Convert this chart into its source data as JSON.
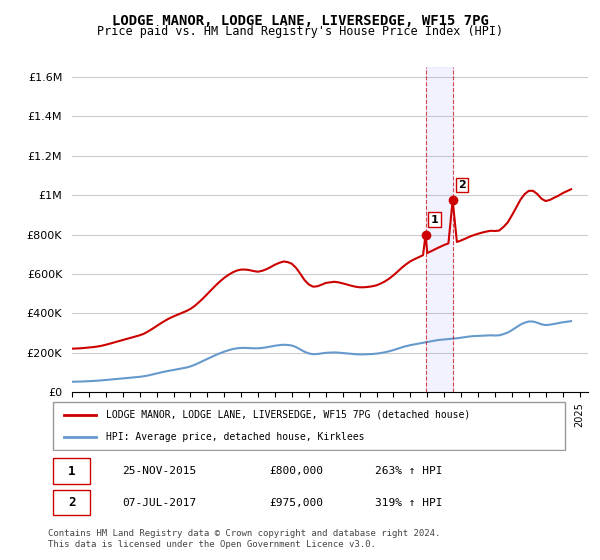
{
  "title": "LODGE MANOR, LODGE LANE, LIVERSEDGE, WF15 7PG",
  "subtitle": "Price paid vs. HM Land Registry's House Price Index (HPI)",
  "ylabel": "",
  "ylim": [
    0,
    1650000
  ],
  "yticks": [
    0,
    200000,
    400000,
    600000,
    800000,
    1000000,
    1200000,
    1400000,
    1600000
  ],
  "ytick_labels": [
    "£0",
    "£200K",
    "£400K",
    "£600K",
    "£800K",
    "£1M",
    "£1.2M",
    "£1.4M",
    "£1.6M"
  ],
  "xlim_start": 1995.0,
  "xlim_end": 2025.5,
  "sale1_x": 2015.9,
  "sale1_y": 800000,
  "sale1_label": "1",
  "sale2_x": 2017.5,
  "sale2_y": 975000,
  "sale2_label": "2",
  "sale_color": "#cc0000",
  "hpi_color": "#6699cc",
  "background_color": "#ffffff",
  "grid_color": "#cccccc",
  "legend_line1": "LODGE MANOR, LODGE LANE, LIVERSEDGE, WF15 7PG (detached house)",
  "legend_line2": "HPI: Average price, detached house, Kirklees",
  "table_row1": [
    "1",
    "25-NOV-2015",
    "£800,000",
    "263% ↑ HPI"
  ],
  "table_row2": [
    "2",
    "07-JUL-2017",
    "£975,000",
    "319% ↑ HPI"
  ],
  "footnote": "Contains HM Land Registry data © Crown copyright and database right 2024.\nThis data is licensed under the Open Government Licence v3.0.",
  "hpi_data_x": [
    1995.0,
    1995.25,
    1995.5,
    1995.75,
    1996.0,
    1996.25,
    1996.5,
    1996.75,
    1997.0,
    1997.25,
    1997.5,
    1997.75,
    1998.0,
    1998.25,
    1998.5,
    1998.75,
    1999.0,
    1999.25,
    1999.5,
    1999.75,
    2000.0,
    2000.25,
    2000.5,
    2000.75,
    2001.0,
    2001.25,
    2001.5,
    2001.75,
    2002.0,
    2002.25,
    2002.5,
    2002.75,
    2003.0,
    2003.25,
    2003.5,
    2003.75,
    2004.0,
    2004.25,
    2004.5,
    2004.75,
    2005.0,
    2005.25,
    2005.5,
    2005.75,
    2006.0,
    2006.25,
    2006.5,
    2006.75,
    2007.0,
    2007.25,
    2007.5,
    2007.75,
    2008.0,
    2008.25,
    2008.5,
    2008.75,
    2009.0,
    2009.25,
    2009.5,
    2009.75,
    2010.0,
    2010.25,
    2010.5,
    2010.75,
    2011.0,
    2011.25,
    2011.5,
    2011.75,
    2012.0,
    2012.25,
    2012.5,
    2012.75,
    2013.0,
    2013.25,
    2013.5,
    2013.75,
    2014.0,
    2014.25,
    2014.5,
    2014.75,
    2015.0,
    2015.25,
    2015.5,
    2015.75,
    2016.0,
    2016.25,
    2016.5,
    2016.75,
    2017.0,
    2017.25,
    2017.5,
    2017.75,
    2018.0,
    2018.25,
    2018.5,
    2018.75,
    2019.0,
    2019.25,
    2019.5,
    2019.75,
    2020.0,
    2020.25,
    2020.5,
    2020.75,
    2021.0,
    2021.25,
    2021.5,
    2021.75,
    2022.0,
    2022.25,
    2022.5,
    2022.75,
    2023.0,
    2023.25,
    2023.5,
    2023.75,
    2024.0,
    2024.25,
    2024.5
  ],
  "hpi_data_y": [
    52000,
    52500,
    53000,
    54000,
    55000,
    56000,
    57500,
    59000,
    61000,
    63000,
    65000,
    67000,
    69000,
    71000,
    73000,
    75000,
    77000,
    80000,
    84000,
    89000,
    94000,
    99000,
    104000,
    108000,
    112000,
    116000,
    120000,
    124000,
    130000,
    138000,
    148000,
    158000,
    168000,
    178000,
    188000,
    197000,
    205000,
    212000,
    218000,
    222000,
    224000,
    224000,
    223000,
    222000,
    222000,
    224000,
    227000,
    231000,
    235000,
    238000,
    240000,
    239000,
    236000,
    228000,
    216000,
    204000,
    196000,
    192000,
    193000,
    196000,
    199000,
    200000,
    201000,
    200000,
    198000,
    196000,
    194000,
    192000,
    191000,
    191000,
    192000,
    193000,
    195000,
    198000,
    202000,
    207000,
    213000,
    220000,
    227000,
    233000,
    238000,
    242000,
    246000,
    250000,
    254000,
    258000,
    262000,
    265000,
    267000,
    269000,
    271000,
    273000,
    276000,
    279000,
    282000,
    284000,
    285000,
    286000,
    287000,
    288000,
    287000,
    288000,
    294000,
    302000,
    314000,
    328000,
    342000,
    352000,
    358000,
    358000,
    352000,
    344000,
    340000,
    342000,
    346000,
    350000,
    354000,
    357000,
    360000
  ],
  "red_data_x": [
    1995.0,
    1995.25,
    1995.5,
    1995.75,
    1996.0,
    1996.25,
    1996.5,
    1996.75,
    1997.0,
    1997.25,
    1997.5,
    1997.75,
    1998.0,
    1998.25,
    1998.5,
    1998.75,
    1999.0,
    1999.25,
    1999.5,
    1999.75,
    2000.0,
    2000.25,
    2000.5,
    2000.75,
    2001.0,
    2001.25,
    2001.5,
    2001.75,
    2002.0,
    2002.25,
    2002.5,
    2002.75,
    2003.0,
    2003.25,
    2003.5,
    2003.75,
    2004.0,
    2004.25,
    2004.5,
    2004.75,
    2005.0,
    2005.25,
    2005.5,
    2005.75,
    2006.0,
    2006.25,
    2006.5,
    2006.75,
    2007.0,
    2007.25,
    2007.5,
    2007.75,
    2008.0,
    2008.25,
    2008.5,
    2008.75,
    2009.0,
    2009.25,
    2009.5,
    2009.75,
    2010.0,
    2010.25,
    2010.5,
    2010.75,
    2011.0,
    2011.25,
    2011.5,
    2011.75,
    2012.0,
    2012.25,
    2012.5,
    2012.75,
    2013.0,
    2013.25,
    2013.5,
    2013.75,
    2014.0,
    2014.25,
    2014.5,
    2014.75,
    2015.0,
    2015.25,
    2015.5,
    2015.75,
    2015.9,
    2016.0,
    2016.25,
    2016.5,
    2016.75,
    2017.0,
    2017.25,
    2017.5,
    2017.75,
    2018.0,
    2018.25,
    2018.5,
    2018.75,
    2019.0,
    2019.25,
    2019.5,
    2019.75,
    2020.0,
    2020.25,
    2020.5,
    2020.75,
    2021.0,
    2021.25,
    2021.5,
    2021.75,
    2022.0,
    2022.25,
    2022.5,
    2022.75,
    2023.0,
    2023.25,
    2023.5,
    2023.75,
    2024.0,
    2024.25,
    2024.5
  ],
  "red_data_y": [
    220000,
    221000,
    222000,
    224000,
    226000,
    228000,
    231000,
    235000,
    240000,
    246000,
    252000,
    258000,
    264000,
    270000,
    276000,
    282000,
    288000,
    296000,
    308000,
    321000,
    335000,
    349000,
    362000,
    374000,
    384000,
    393000,
    402000,
    411000,
    422000,
    437000,
    456000,
    476000,
    498000,
    520000,
    542000,
    562000,
    580000,
    595000,
    608000,
    617000,
    622000,
    622000,
    619000,
    614000,
    611000,
    616000,
    624000,
    635000,
    647000,
    656000,
    663000,
    660000,
    651000,
    630000,
    600000,
    568000,
    546000,
    535000,
    537000,
    545000,
    554000,
    557000,
    560000,
    557000,
    552000,
    546000,
    540000,
    535000,
    532000,
    532000,
    534000,
    537000,
    542000,
    551000,
    562000,
    576000,
    593000,
    612000,
    632000,
    649000,
    664000,
    675000,
    685000,
    695000,
    800000,
    706000,
    716000,
    727000,
    737000,
    747000,
    755000,
    975000,
    762000,
    770000,
    779000,
    789000,
    797000,
    804000,
    810000,
    815000,
    819000,
    818000,
    820000,
    838000,
    861000,
    897000,
    936000,
    976000,
    1005000,
    1022000,
    1022000,
    1006000,
    982000,
    970000,
    976000,
    987000,
    997000,
    1010000,
    1020000,
    1030000
  ]
}
